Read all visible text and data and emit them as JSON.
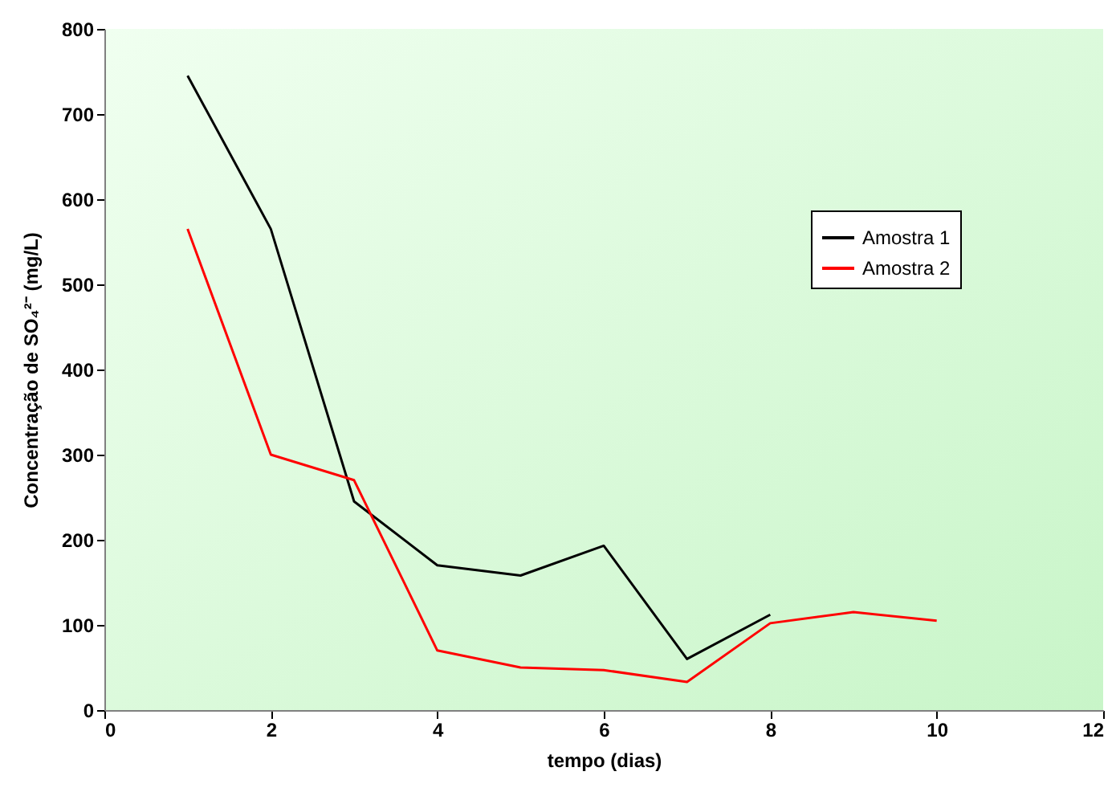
{
  "chart_data": {
    "type": "line",
    "xlabel": "tempo (dias)",
    "ylabel": "Concentração de SO₄²⁻ (mg/L)",
    "x": [
      1,
      2,
      3,
      4,
      5,
      6,
      7,
      8,
      9,
      10
    ],
    "series": [
      {
        "name": "Amostra 1",
        "color": "#000000",
        "values": [
          745,
          565,
          245,
          170,
          158,
          193,
          60,
          112,
          null,
          null
        ]
      },
      {
        "name": "Amostra 2",
        "color": "#ff0000",
        "values": [
          565,
          300,
          270,
          70,
          50,
          47,
          33,
          102,
          115,
          105
        ]
      }
    ],
    "xlim": [
      0,
      12
    ],
    "xticks": [
      0,
      2,
      4,
      6,
      8,
      10,
      12
    ],
    "ylim": [
      0,
      800
    ],
    "yticks": [
      0,
      100,
      200,
      300,
      400,
      500,
      600,
      700,
      800
    ],
    "grid": false,
    "legend": "top right",
    "marker": "none",
    "line_style": "solid"
  }
}
